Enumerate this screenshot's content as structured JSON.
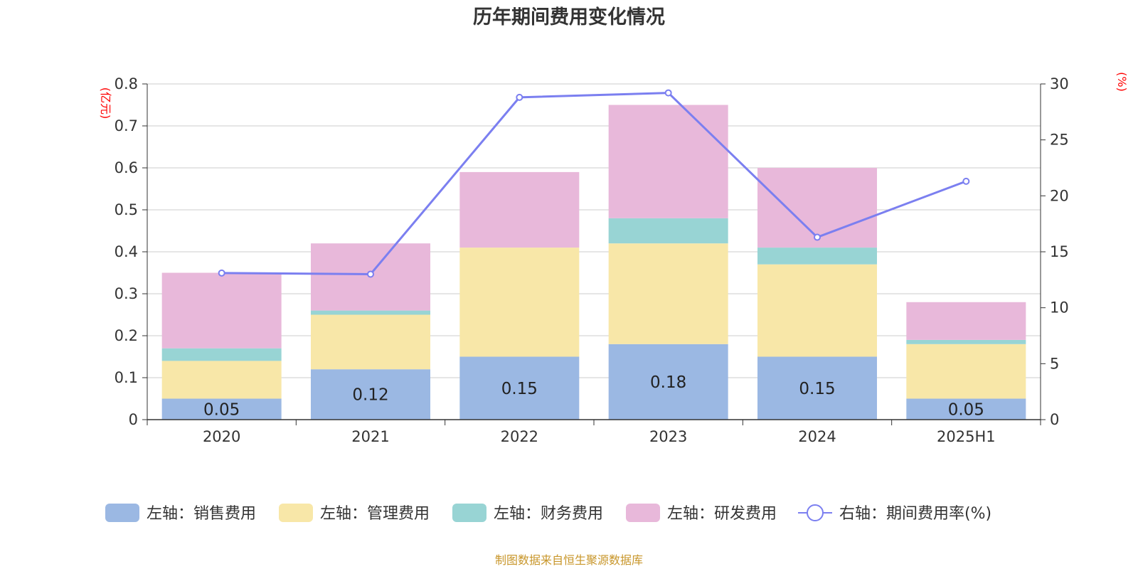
{
  "chart_data": {
    "type": "bar",
    "title": "历年期间费用变化情况",
    "categories": [
      "2020",
      "2021",
      "2022",
      "2023",
      "2024",
      "2025H1"
    ],
    "y_left": {
      "unit": "(亿元)",
      "ylim": [
        0,
        0.8
      ],
      "ticks": [
        "0",
        "0.1",
        "0.2",
        "0.3",
        "0.4",
        "0.5",
        "0.6",
        "0.7",
        "0.8"
      ]
    },
    "y_right": {
      "unit": "(%)",
      "ylim": [
        0,
        30
      ],
      "ticks": [
        "0",
        "5",
        "10",
        "15",
        "20",
        "25",
        "30"
      ]
    },
    "series": [
      {
        "name": "左轴：销售费用",
        "type": "bar",
        "color": "#9bb8e3",
        "values": [
          0.05,
          0.12,
          0.15,
          0.18,
          0.15,
          0.05
        ],
        "labels": [
          "0.05",
          "0.12",
          "0.15",
          "0.18",
          "0.15",
          "0.05"
        ]
      },
      {
        "name": "左轴：管理费用",
        "type": "bar",
        "color": "#f8e7a8",
        "values": [
          0.09,
          0.13,
          0.26,
          0.24,
          0.22,
          0.13
        ]
      },
      {
        "name": "左轴：财务费用",
        "type": "bar",
        "color": "#98d4d4",
        "values": [
          0.03,
          0.01,
          0.0,
          0.06,
          0.04,
          0.01
        ]
      },
      {
        "name": "左轴：研发费用",
        "type": "bar",
        "color": "#e8b8da",
        "values": [
          0.18,
          0.16,
          0.18,
          0.27,
          0.19,
          0.09
        ]
      },
      {
        "name": "右轴：期间费用率(%)",
        "type": "line",
        "color": "#7b7ff0",
        "values": [
          13.1,
          13.0,
          28.8,
          29.2,
          16.3,
          21.3
        ]
      }
    ],
    "grid": true,
    "legend": "bottom"
  },
  "footer": {
    "source": "制图数据来自恒生聚源数据库"
  }
}
